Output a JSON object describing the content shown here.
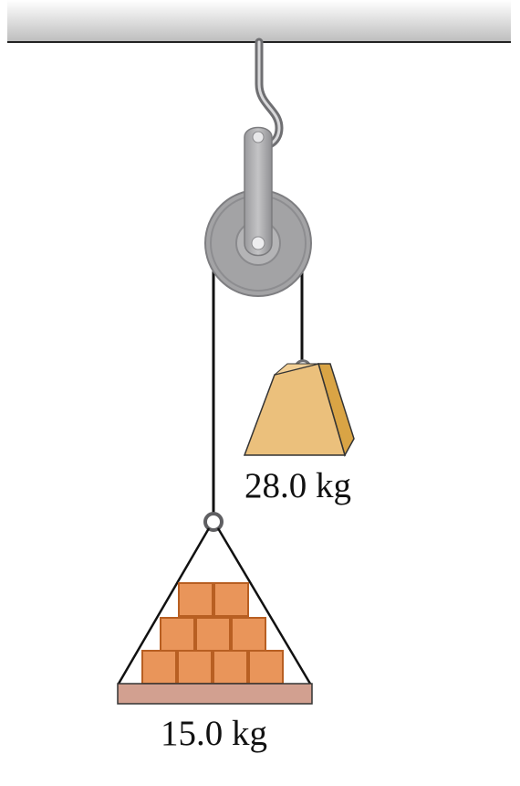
{
  "diagram": {
    "masses": {
      "hanging_weight_label": "28.0 kg",
      "brick_load_label": "15.0 kg"
    },
    "colors": {
      "ceiling": "#c9c9c9",
      "pulley": "#a3a3a5",
      "pulley_rim": "#8d8d90",
      "weight_front": "#ebc07c",
      "weight_side": "#d9a445",
      "brick": "#e9955a",
      "brick_border": "#b85f22",
      "platform": "#d2a090",
      "rope": "#111111"
    }
  }
}
